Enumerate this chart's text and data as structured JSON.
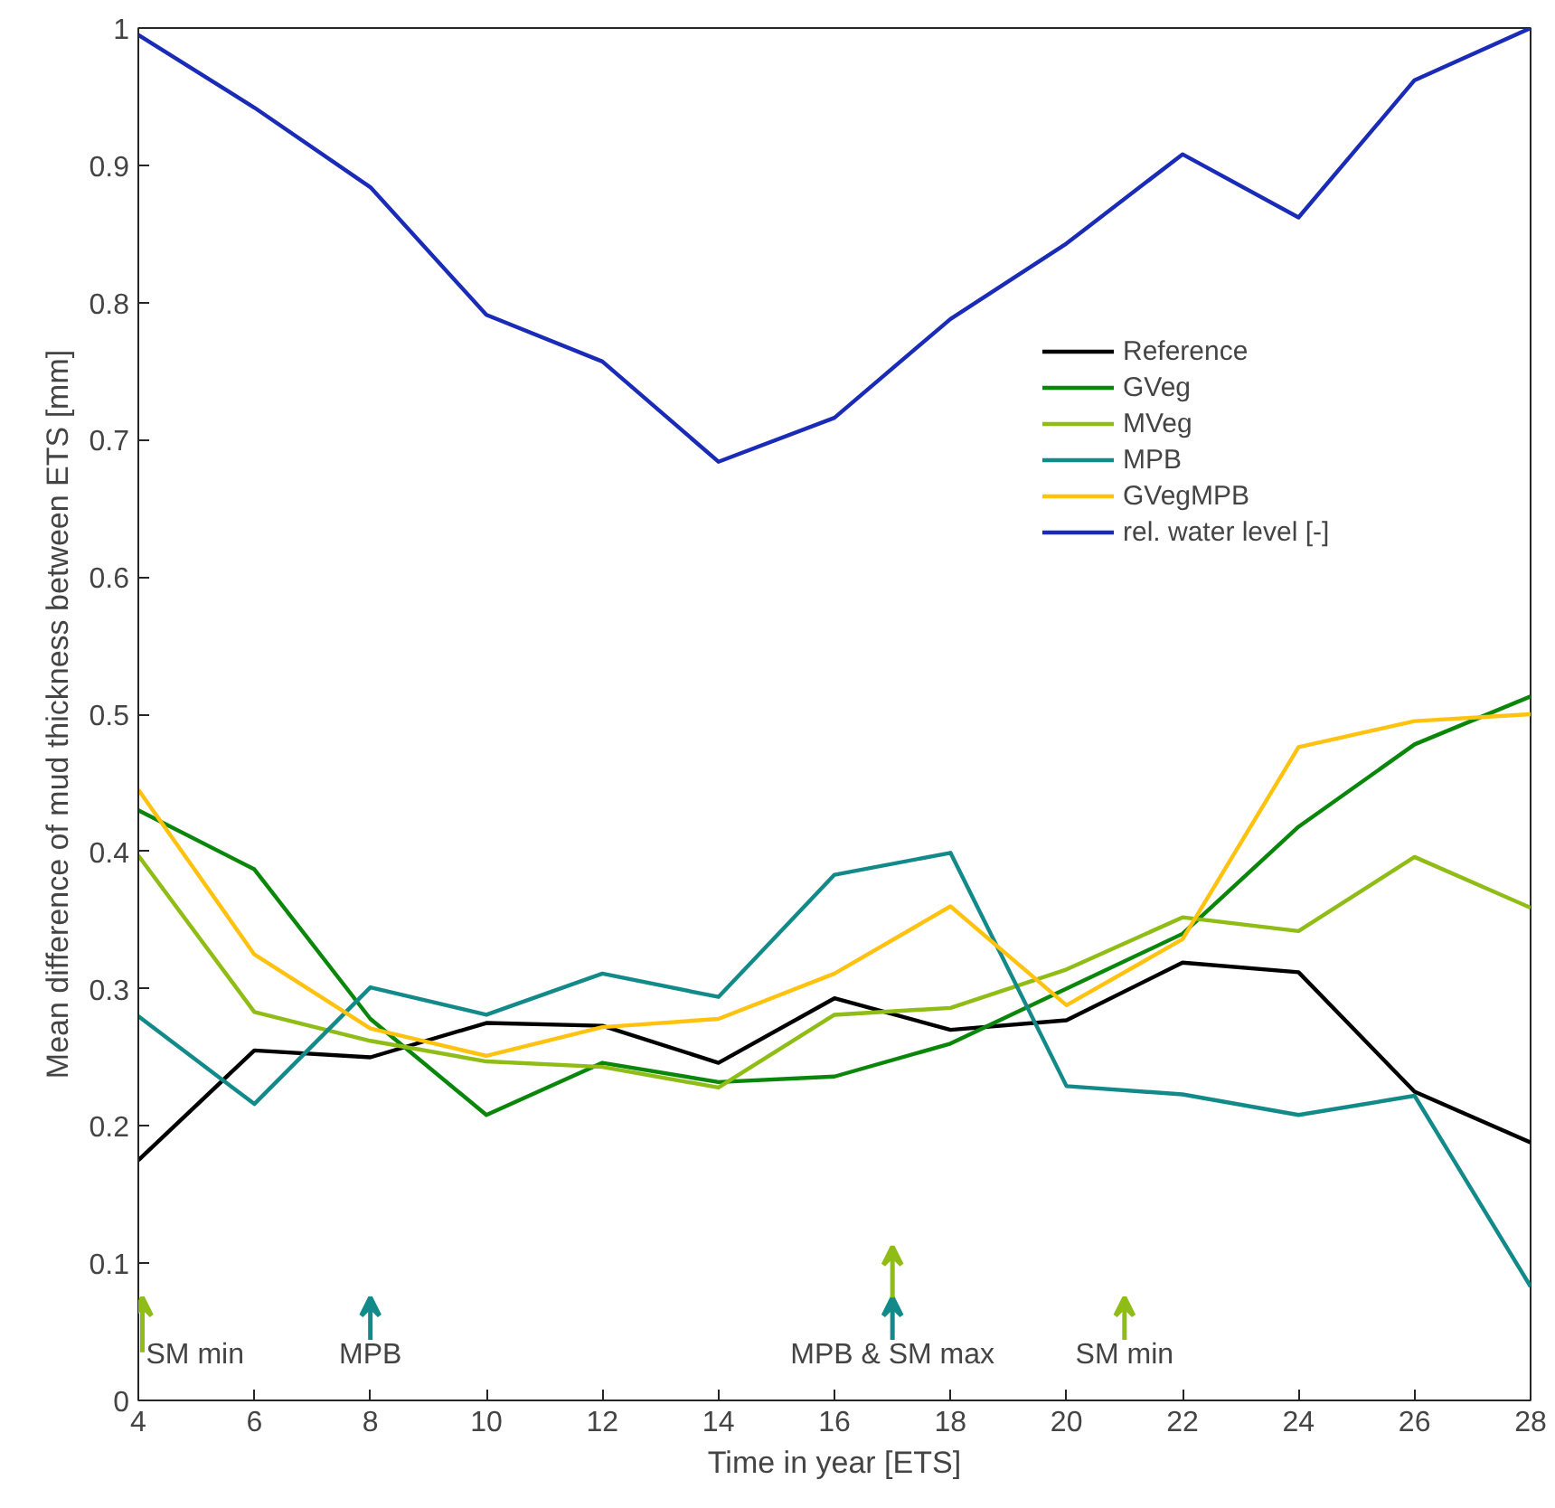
{
  "chart_data": {
    "type": "line",
    "xlabel": "Time in year [ETS]",
    "ylabel": "Mean difference of mud thickness between ETS [mm]",
    "x": [
      4,
      6,
      8,
      10,
      12,
      14,
      16,
      18,
      20,
      22,
      24,
      26,
      28
    ],
    "series": [
      {
        "name": "Reference",
        "color": "#000000",
        "values": [
          0.175,
          0.255,
          0.25,
          0.275,
          0.273,
          0.246,
          0.293,
          0.27,
          0.277,
          0.319,
          0.312,
          0.225,
          0.188
        ]
      },
      {
        "name": "GVeg",
        "color": "#0a870a",
        "values": [
          0.43,
          0.387,
          0.278,
          0.208,
          0.246,
          0.232,
          0.236,
          0.26,
          0.3,
          0.34,
          0.418,
          0.478,
          0.513
        ]
      },
      {
        "name": "MVeg",
        "color": "#8fbc15",
        "values": [
          0.397,
          0.283,
          0.262,
          0.247,
          0.243,
          0.228,
          0.281,
          0.286,
          0.314,
          0.352,
          0.342,
          0.396,
          0.359
        ]
      },
      {
        "name": "MPB",
        "color": "#138a8a",
        "values": [
          0.28,
          0.216,
          0.301,
          0.281,
          0.311,
          0.294,
          0.383,
          0.399,
          0.229,
          0.223,
          0.208,
          0.222,
          0.083
        ]
      },
      {
        "name": "GVegMPB",
        "color": "#ffc20e",
        "values": [
          0.445,
          0.325,
          0.271,
          0.251,
          0.272,
          0.278,
          0.311,
          0.36,
          0.288,
          0.336,
          0.476,
          0.495,
          0.5
        ]
      },
      {
        "name": "rel. water level [-]",
        "color": "#1a2bb8",
        "values": [
          0.995,
          0.942,
          0.884,
          0.791,
          0.757,
          0.684,
          0.716,
          0.788,
          0.843,
          0.908,
          0.862,
          0.962,
          1.0
        ]
      }
    ],
    "annotations": [
      "SM min",
      "MPB",
      "MPB & SM max",
      "SM min"
    ],
    "xlim": [
      4,
      28
    ],
    "xticks": [
      4,
      6,
      8,
      10,
      12,
      14,
      16,
      18,
      20,
      22,
      24,
      26,
      28
    ],
    "ylim": [
      0,
      1
    ],
    "yticks": [
      0,
      0.1,
      0.2,
      0.3,
      0.4,
      0.5,
      0.6,
      0.7,
      0.8,
      0.9,
      1
    ],
    "grid": false,
    "legend": "right",
    "marker": "none",
    "line_style": "solid"
  }
}
